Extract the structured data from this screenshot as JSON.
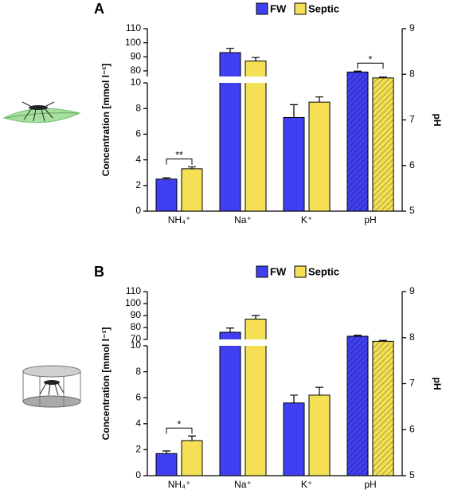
{
  "chart_data": [
    {
      "type": "bar",
      "panel": "A",
      "y_label": "Concentration [mmol l⁻¹]",
      "y2_label": "pH",
      "categories": [
        "NH₄⁺",
        "Na⁺",
        "K⁺",
        "pH"
      ],
      "series": [
        {
          "name": "FW",
          "color": "#4040f2",
          "values": [
            2.5,
            93,
            7.3,
            null
          ],
          "errors": [
            0.1,
            3,
            1.0,
            null
          ],
          "y2_values": [
            null,
            null,
            null,
            8.05
          ],
          "y2_errors": [
            null,
            null,
            null,
            0.02
          ]
        },
        {
          "name": "Septic",
          "color": "#f5e055",
          "values": [
            3.3,
            87,
            8.5,
            null
          ],
          "errors": [
            0.15,
            2.5,
            0.4,
            null
          ],
          "y2_values": [
            null,
            null,
            null,
            7.92
          ],
          "y2_errors": [
            null,
            null,
            null,
            0.02
          ]
        }
      ],
      "significance": [
        "**",
        null,
        null,
        "*"
      ],
      "ylim": [
        0,
        110
      ],
      "y_break": [
        10,
        76
      ],
      "yticks": [
        0,
        2,
        4,
        6,
        8,
        10,
        80,
        90,
        100,
        110
      ],
      "y2lim": [
        5,
        9
      ],
      "y2ticks": [
        5,
        6,
        7,
        8,
        9
      ],
      "y2_pattern": "hatched"
    },
    {
      "type": "bar",
      "panel": "B",
      "y_label": "Concentration [mmol l⁻¹]",
      "y2_label": "pH",
      "categories": [
        "NH₄⁺",
        "Na⁺",
        "K⁺",
        "pH"
      ],
      "series": [
        {
          "name": "FW",
          "color": "#4040f2",
          "values": [
            1.7,
            76,
            5.6,
            null
          ],
          "errors": [
            0.2,
            3.5,
            0.6,
            null
          ],
          "y2_values": [
            null,
            null,
            null,
            8.03
          ],
          "y2_errors": [
            null,
            null,
            null,
            0.02
          ]
        },
        {
          "name": "Septic",
          "color": "#f5e055",
          "values": [
            2.7,
            87,
            6.2,
            null
          ],
          "errors": [
            0.35,
            3,
            0.6,
            null
          ],
          "y2_values": [
            null,
            null,
            null,
            7.92
          ],
          "y2_errors": [
            null,
            null,
            null,
            0.02
          ]
        }
      ],
      "significance": [
        "*",
        null,
        null,
        null
      ],
      "ylim": [
        0,
        110
      ],
      "y_break": [
        10,
        70
      ],
      "yticks": [
        0,
        2,
        4,
        6,
        8,
        10,
        70,
        80,
        90,
        100,
        110
      ],
      "y2lim": [
        5,
        9
      ],
      "y2ticks": [
        5,
        6,
        7,
        8,
        9
      ],
      "y2_pattern": "hatched"
    }
  ]
}
